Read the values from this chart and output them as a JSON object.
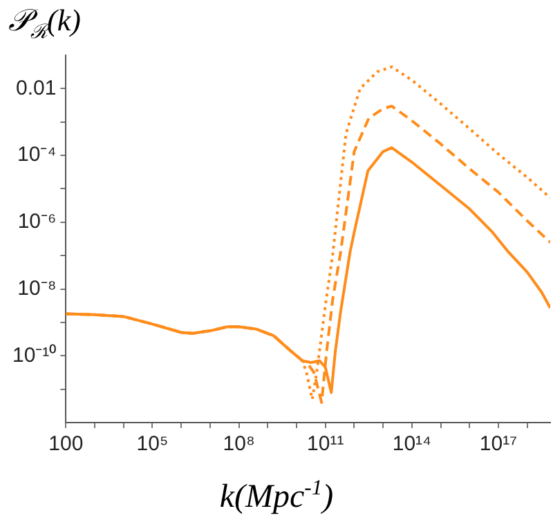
{
  "chart_data": {
    "type": "line",
    "ylabel": "𝒫$_{ℛ}$(k)",
    "xlabel": "k(Mpc$^{-1}$)",
    "log": "xy",
    "marker": "none",
    "xlim": [
      100,
      6.3e+18
    ],
    "ylim": [
      1e-12,
      0.1
    ],
    "xticks": [
      100,
      {
        "value": 1000,
        "label": null
      },
      {
        "value": 10000,
        "label": null
      },
      {
        "value": 100000.0,
        "label": "10⁵"
      },
      {
        "value": 1000000.0,
        "label": null
      },
      {
        "value": 10000000.0,
        "label": null
      },
      {
        "value": 100000000.0,
        "label": "10⁸"
      },
      {
        "value": 1000000000.0,
        "label": null
      },
      {
        "value": 10000000000.0,
        "label": null
      },
      {
        "value": 100000000000.0,
        "label": "10¹¹"
      },
      {
        "value": 1000000000000.0,
        "label": null
      },
      {
        "value": 10000000000000.0,
        "label": null
      },
      {
        "value": 100000000000000.0,
        "label": "10¹⁴"
      },
      {
        "value": 1000000000000000.0,
        "label": null
      },
      {
        "value": 1e+16,
        "label": null
      },
      {
        "value": 1e+17,
        "label": "10¹⁷"
      },
      {
        "value": 1e+18,
        "label": null
      }
    ],
    "yticks": [
      {
        "value": 1e-11,
        "label": null
      },
      {
        "value": 1e-10,
        "label": "10⁻¹⁰"
      },
      {
        "value": 1e-09,
        "label": null
      },
      {
        "value": 1e-08,
        "label": "10⁻⁸"
      },
      {
        "value": 1e-07,
        "label": null
      },
      {
        "value": 1e-06,
        "label": "10⁻⁶"
      },
      {
        "value": 1e-05,
        "label": null
      },
      {
        "value": 0.0001,
        "label": "10⁻⁴"
      },
      {
        "value": 0.001,
        "label": null
      },
      0.01
    ],
    "series": [
      {
        "color": "#ff8c1a",
        "line_style": "solid",
        "x": [
          100,
          1000.0,
          10000.0,
          100000.0,
          1000000.0,
          2500000.0,
          10000000.0,
          40000000.0,
          100000000.0,
          400000000.0,
          1600000000.0,
          6300000000.0,
          16000000000.0,
          32000000000.0,
          63000000000.0,
          100000000000.0,
          160000000000.0,
          220000000000.0,
          340000000000.0,
          720000000000.0,
          1000000000000.0,
          3000000000000.0,
          10000000000000.0,
          20000000000000.0,
          100000000000000.0,
          1400000000000000.0,
          1e+16,
          6.3e+16,
          2.2e+17,
          1e+18,
          3.2e+18,
          6.3e+18
        ],
        "values": [
          1.8e-09,
          1.7e-09,
          1.5e-09,
          8.9e-10,
          5e-10,
          4.7e-10,
          5.6e-10,
          7.4e-10,
          7.4e-10,
          6.3e-10,
          4e-10,
          1.4e-10,
          7.1e-11,
          6.3e-11,
          7.1e-11,
          4.5e-11,
          7.9e-12,
          1.3e-10,
          2.2e-09,
          1.3e-07,
          5e-07,
          3.5e-05,
          0.00013,
          0.00017,
          6.3e-05,
          1e-05,
          2.5e-06,
          5e-07,
          1.3e-07,
          3.2e-08,
          7.9e-09,
          2.7e-09
        ]
      },
      {
        "color": "#ff8c1a",
        "line_style": "dashed",
        "x": [
          100,
          1000.0,
          10000.0,
          100000.0,
          1000000.0,
          2500000.0,
          10000000.0,
          40000000.0,
          100000000.0,
          400000000.0,
          1600000000.0,
          6300000000.0,
          16000000000.0,
          25000000000.0,
          40000000000.0,
          74000000000.0,
          110000000000.0,
          180000000000.0,
          340000000000.0,
          1000000000000.0,
          3200000000000.0,
          10000000000000.0,
          20000000000000.0,
          100000000000000.0,
          1000000000000000.0,
          1e+16,
          1e+17,
          1e+18,
          6.3e+18
        ],
        "values": [
          1.8e-09,
          1.7e-09,
          1.5e-09,
          8.9e-10,
          5e-10,
          4.7e-10,
          5.6e-10,
          7.4e-10,
          7.4e-10,
          6.3e-10,
          4e-10,
          1.4e-10,
          7.1e-11,
          5.6e-11,
          3.2e-11,
          4e-12,
          1.3e-10,
          5e-09,
          1.3e-07,
          0.00013,
          0.0013,
          0.0025,
          0.003,
          0.0011,
          0.00022,
          4e-05,
          7.9e-06,
          1.1e-06,
          2.5e-07
        ]
      },
      {
        "color": "#ff8c1a",
        "line_style": "dotted",
        "x": [
          100,
          1000.0,
          10000.0,
          100000.0,
          1000000.0,
          2500000.0,
          10000000.0,
          40000000.0,
          100000000.0,
          400000000.0,
          1600000000.0,
          6300000000.0,
          16000000000.0,
          22000000000.0,
          35000000000.0,
          50000000000.0,
          100000000000.0,
          180000000000.0,
          520000000000.0,
          1600000000000.0,
          6300000000000.0,
          20000000000000.0,
          100000000000000.0,
          1000000000000000.0,
          1e+16,
          1e+17,
          1e+18,
          6.3e+18
        ],
        "values": [
          1.8e-09,
          1.7e-09,
          1.5e-09,
          8.9e-10,
          5e-10,
          4.7e-10,
          5.6e-10,
          7.4e-10,
          7.4e-10,
          6.3e-10,
          4e-10,
          1.4e-10,
          7.1e-11,
          3.2e-11,
          5e-12,
          3.2e-11,
          3.2e-09,
          1.1e-07,
          0.00045,
          0.01,
          0.032,
          0.045,
          0.018,
          0.0035,
          0.00063,
          0.00011,
          2.2e-05,
          5.4e-06
        ]
      }
    ]
  }
}
